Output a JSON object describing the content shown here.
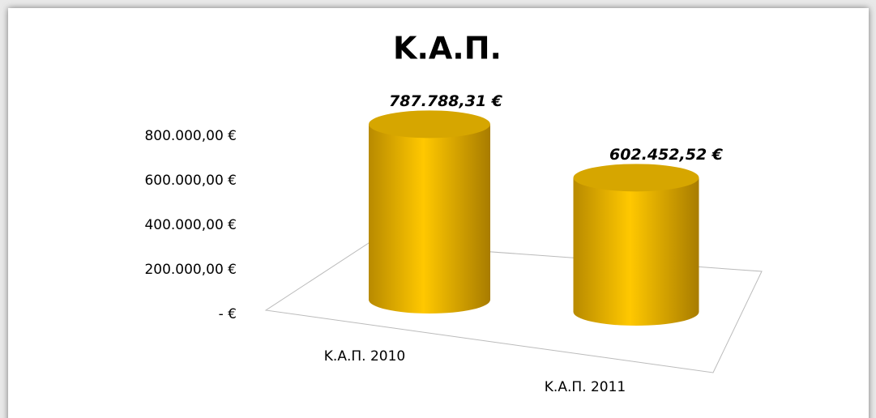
{
  "chart_data": {
    "type": "bar",
    "title": "Κ.Α.Π.",
    "categories": [
      "Κ.Α.Π. 2010",
      "Κ.Α.Π. 2011"
    ],
    "values": [
      787788.31,
      602452.52
    ],
    "value_labels": [
      "787.788,31 €",
      "602.452,52 €"
    ],
    "color": "#ffc800",
    "ylim": [
      0,
      800000
    ],
    "yticks": [
      {
        "value": 0,
        "label": "-   €"
      },
      {
        "value": 200000,
        "label": "200.000,00 €"
      },
      {
        "value": 400000,
        "label": "400.000,00 €"
      },
      {
        "value": 600000,
        "label": "600.000,00 €"
      },
      {
        "value": 800000,
        "label": "800.000,00 €"
      }
    ]
  }
}
